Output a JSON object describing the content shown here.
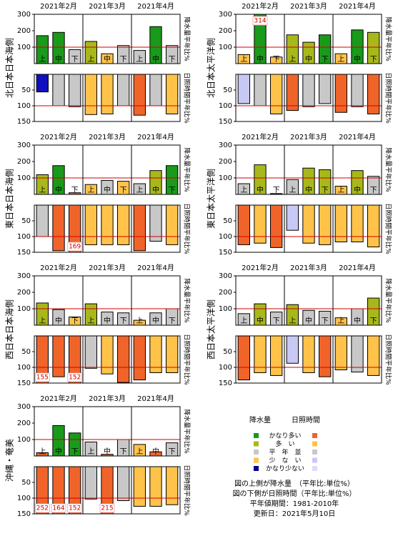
{
  "chart_data": [
    {
      "type": "bar",
      "title": "北日本日本海側",
      "months": [
        "2021年2月",
        "2021年3月",
        "2021年4月"
      ],
      "categories": [
        "上",
        "中",
        "下",
        "上",
        "中",
        "下",
        "上",
        "中",
        "下"
      ],
      "ylabel": "降水量平年比%",
      "y2label": "日照時間平年比%",
      "ylim": [
        0,
        300
      ],
      "yticks": [
        100,
        200,
        300
      ],
      "y2lim": [
        0,
        150
      ],
      "y2ticks": [
        50,
        100,
        150
      ],
      "y2_inverted": true,
      "reference_line": 100,
      "series": [
        {
          "axis": "y",
          "values": [
            170,
            190,
            85,
            135,
            60,
            110,
            80,
            225,
            110
          ],
          "colors": [
            "#1a9a1a",
            "#1a9a1a",
            "#c8c8c8",
            "#a8b81a",
            "#ffc34a",
            "#c8c8c8",
            "#c8c8c8",
            "#1a9a1a",
            "#c8c8c8"
          ],
          "value_labels": [
            null,
            null,
            null,
            null,
            null,
            null,
            null,
            null,
            null
          ]
        },
        {
          "axis": "y2",
          "values": [
            56,
            100,
            103,
            128,
            126,
            100,
            130,
            100,
            126
          ],
          "colors": [
            "#1010c0",
            "#c8c8c8",
            "#c8c8c8",
            "#ffc34a",
            "#ffc34a",
            "#c8c8c8",
            "#f0642a",
            "#c8c8c8",
            "#ffc34a"
          ],
          "value_labels": [
            null,
            null,
            null,
            null,
            null,
            null,
            null,
            null,
            null
          ]
        }
      ]
    },
    {
      "type": "bar",
      "title": "北日本太平洋側",
      "months": [
        "2021年2月",
        "2021年3月",
        "2021年4月"
      ],
      "categories": [
        "上",
        "中",
        "下",
        "上",
        "中",
        "下",
        "上",
        "中",
        "下"
      ],
      "ylabel": "降水量平年比%",
      "y2label": "日照時間平年比%",
      "ylim": [
        0,
        300
      ],
      "yticks": [
        100,
        200,
        300
      ],
      "y2lim": [
        0,
        150
      ],
      "y2ticks": [
        50,
        100,
        150
      ],
      "y2_inverted": true,
      "reference_line": 100,
      "series": [
        {
          "axis": "y",
          "values": [
            55,
            314,
            40,
            175,
            130,
            175,
            60,
            205,
            190
          ],
          "colors": [
            "#ffc34a",
            "#1a9a1a",
            "#ffc34a",
            "#a8b81a",
            "#a8b81a",
            "#1a9a1a",
            "#ffc34a",
            "#1a9a1a",
            "#a8b81a"
          ],
          "value_labels": [
            null,
            "314",
            null,
            null,
            null,
            null,
            null,
            null,
            null
          ]
        },
        {
          "axis": "y2",
          "values": [
            93,
            100,
            126,
            115,
            103,
            93,
            121,
            103,
            126
          ],
          "colors": [
            "#c8c8f5",
            "#c8c8c8",
            "#ffc34a",
            "#f0642a",
            "#c8c8c8",
            "#c8c8c8",
            "#f0642a",
            "#c8c8c8",
            "#f0642a"
          ],
          "value_labels": [
            null,
            null,
            null,
            null,
            null,
            null,
            null,
            null,
            null
          ]
        }
      ]
    },
    {
      "type": "bar",
      "title": "東日本日本海側",
      "months": [
        "2021年2月",
        "2021年3月",
        "2021年4月"
      ],
      "categories": [
        "上",
        "中",
        "下",
        "上",
        "中",
        "下",
        "上",
        "中",
        "下"
      ],
      "ylabel": "降水量平年比%",
      "y2label": "日照時間平年比%",
      "ylim": [
        0,
        300
      ],
      "yticks": [
        100,
        200,
        300
      ],
      "y2lim": [
        0,
        150
      ],
      "y2ticks": [
        50,
        100,
        150
      ],
      "y2_inverted": true,
      "reference_line": 100,
      "series": [
        {
          "axis": "y",
          "values": [
            120,
            175,
            10,
            60,
            85,
            80,
            65,
            145,
            175
          ],
          "colors": [
            "#a8b81a",
            "#1a9a1a",
            "#f0642a",
            "#ffc34a",
            "#c8c8c8",
            "#ffc34a",
            "#c8c8c8",
            "#a8b81a",
            "#1a9a1a"
          ],
          "value_labels": [
            null,
            null,
            null,
            null,
            null,
            null,
            null,
            null,
            null
          ]
        },
        {
          "axis": "y2",
          "values": [
            100,
            145,
            169,
            126,
            126,
            126,
            145,
            115,
            126
          ],
          "colors": [
            "#c8c8c8",
            "#f0642a",
            "#f0642a",
            "#ffc34a",
            "#ffc34a",
            "#ffc34a",
            "#f0642a",
            "#c8c8c8",
            "#ffc34a"
          ],
          "value_labels": [
            null,
            null,
            "169",
            null,
            null,
            null,
            null,
            null,
            null
          ]
        }
      ]
    },
    {
      "type": "bar",
      "title": "東日本太平洋側",
      "months": [
        "2021年2月",
        "2021年3月",
        "2021年4月"
      ],
      "categories": [
        "上",
        "中",
        "下",
        "上",
        "中",
        "下",
        "上",
        "中",
        "下"
      ],
      "ylabel": "降水量平年比%",
      "y2label": "日照時間平年比%",
      "ylim": [
        0,
        300
      ],
      "yticks": [
        100,
        200,
        300
      ],
      "y2lim": [
        0,
        150
      ],
      "y2ticks": [
        50,
        100,
        150
      ],
      "y2_inverted": true,
      "reference_line": 100,
      "series": [
        {
          "axis": "y",
          "values": [
            65,
            180,
            5,
            90,
            160,
            150,
            50,
            145,
            110
          ],
          "colors": [
            "#c8c8c8",
            "#a8b81a",
            "#00008b",
            "#c8c8c8",
            "#a8b81a",
            "#a8b81a",
            "#ffc34a",
            "#a8b81a",
            "#c8c8c8"
          ],
          "value_labels": [
            null,
            null,
            null,
            null,
            null,
            null,
            null,
            null,
            null
          ]
        },
        {
          "axis": "y2",
          "values": [
            126,
            121,
            135,
            80,
            121,
            126,
            117,
            117,
            133
          ],
          "colors": [
            "#f0642a",
            "#ffc34a",
            "#f0642a",
            "#c8c8f5",
            "#ffc34a",
            "#ffc34a",
            "#ffc34a",
            "#ffc34a",
            "#ffc34a"
          ],
          "value_labels": [
            null,
            null,
            null,
            null,
            null,
            null,
            null,
            null,
            null
          ]
        }
      ]
    },
    {
      "type": "bar",
      "title": "西日本日本海側",
      "months": [
        "2021年2月",
        "2021年3月",
        "2021年4月"
      ],
      "categories": [
        "上",
        "中",
        "下",
        "上",
        "中",
        "下",
        "上",
        "中",
        "下"
      ],
      "ylabel": "降水量平年比%",
      "y2label": "日照時間平年比%",
      "ylim": [
        0,
        300
      ],
      "yticks": [
        100,
        200,
        300
      ],
      "y2lim": [
        0,
        150
      ],
      "y2ticks": [
        50,
        100,
        150
      ],
      "y2_inverted": true,
      "reference_line": 100,
      "series": [
        {
          "axis": "y",
          "values": [
            135,
            95,
            50,
            130,
            80,
            75,
            30,
            75,
            100
          ],
          "colors": [
            "#a8b81a",
            "#c8c8c8",
            "#ffc34a",
            "#a8b81a",
            "#c8c8c8",
            "#c8c8c8",
            "#ffc34a",
            "#c8c8c8",
            "#c8c8c8"
          ],
          "value_labels": [
            null,
            null,
            null,
            null,
            null,
            null,
            null,
            null,
            null
          ]
        },
        {
          "axis": "y2",
          "values": [
            155,
            130,
            152,
            103,
            121,
            148,
            140,
            117,
            117
          ],
          "colors": [
            "#f0642a",
            "#f0642a",
            "#f0642a",
            "#c8c8c8",
            "#ffc34a",
            "#f0642a",
            "#f0642a",
            "#ffc34a",
            "#ffc34a"
          ],
          "value_labels": [
            "155",
            null,
            "152",
            null,
            null,
            null,
            null,
            null,
            null
          ]
        }
      ]
    },
    {
      "type": "bar",
      "title": "西日本太平洋側",
      "months": [
        "2021年2月",
        "2021年3月",
        "2021年4月"
      ],
      "categories": [
        "上",
        "中",
        "下",
        "上",
        "中",
        "下",
        "上",
        "中",
        "下"
      ],
      "ylabel": "降水量平年比%",
      "y2label": "日照時間平年比%",
      "ylim": [
        0,
        300
      ],
      "yticks": [
        100,
        200,
        300
      ],
      "y2lim": [
        0,
        150
      ],
      "y2ticks": [
        50,
        100,
        150
      ],
      "y2_inverted": true,
      "reference_line": 100,
      "series": [
        {
          "axis": "y",
          "values": [
            70,
            130,
            80,
            125,
            90,
            85,
            45,
            100,
            165
          ],
          "colors": [
            "#c8c8c8",
            "#a8b81a",
            "#c8c8c8",
            "#a8b81a",
            "#c8c8c8",
            "#c8c8c8",
            "#ffc34a",
            "#c8c8c8",
            "#a8b81a"
          ],
          "value_labels": [
            null,
            null,
            null,
            null,
            null,
            null,
            null,
            null,
            null
          ]
        },
        {
          "axis": "y2",
          "values": [
            140,
            117,
            126,
            87,
            117,
            130,
            108,
            115,
            126
          ],
          "colors": [
            "#f0642a",
            "#ffc34a",
            "#ffc34a",
            "#c8c8f5",
            "#ffc34a",
            "#f0642a",
            "#ffc34a",
            "#c8c8c8",
            "#ffc34a"
          ],
          "value_labels": [
            null,
            null,
            null,
            null,
            null,
            null,
            null,
            null,
            null
          ]
        }
      ]
    },
    {
      "type": "bar",
      "title": "沖縄・奄美",
      "months": [
        "2021年2月",
        "2021年3月",
        "2021年4月"
      ],
      "categories": [
        "上",
        "中",
        "下",
        "上",
        "中",
        "下",
        "上",
        "中",
        "下"
      ],
      "ylabel": "降水量平年比%",
      "y2label": "日照時間平年比%",
      "ylim": [
        0,
        300
      ],
      "yticks": [
        100,
        200,
        300
      ],
      "y2lim": [
        0,
        150
      ],
      "y2ticks": [
        50,
        100,
        150
      ],
      "y2_inverted": true,
      "reference_line": 100,
      "series": [
        {
          "axis": "y",
          "values": [
            20,
            185,
            140,
            85,
            10,
            100,
            70,
            25,
            80
          ],
          "colors": [
            "#f0642a",
            "#1a9a1a",
            "#1a9a1a",
            "#c8c8c8",
            "#f0642a",
            "#c8c8c8",
            "#ffc34a",
            "#f0642a",
            "#c8c8c8"
          ],
          "value_labels": [
            null,
            null,
            null,
            null,
            null,
            null,
            null,
            null,
            null
          ]
        },
        {
          "axis": "y2",
          "values": [
            252,
            164,
            152,
            103,
            215,
            108,
            126,
            126,
            121
          ],
          "colors": [
            "#f0642a",
            "#f0642a",
            "#f0642a",
            "#c8c8c8",
            "#f0642a",
            "#c8c8c8",
            "#ffc34a",
            "#ffc34a",
            "#ffc34a"
          ],
          "value_labels": [
            "252",
            "164",
            "152",
            null,
            "215",
            null,
            null,
            null,
            null
          ]
        }
      ]
    }
  ],
  "legend": {
    "headers": [
      "降水量",
      "日照時間"
    ],
    "items": [
      {
        "label": "かなり多い",
        "precip_color": "#1a9a1a",
        "sun_color": "#f0642a"
      },
      {
        "label": "多　い",
        "precip_color": "#a8b81a",
        "sun_color": "#ffc34a"
      },
      {
        "label": "平　年　並",
        "precip_color": "#c8c8c8",
        "sun_color": "#c8c8c8"
      },
      {
        "label": "少　な　い",
        "precip_color": "#ffc34a",
        "sun_color": "#c8c8f5"
      },
      {
        "label": "かなり少ない",
        "precip_color": "#00008b",
        "sun_color": "#dcdcfa"
      }
    ]
  },
  "notes": [
    "図の上側が降水量　（平年比:単位%）",
    "図の下側が日照時間（平年比:単位%）",
    "平年値期間：1981-2010年",
    "更新日：2021年5月10日"
  ]
}
